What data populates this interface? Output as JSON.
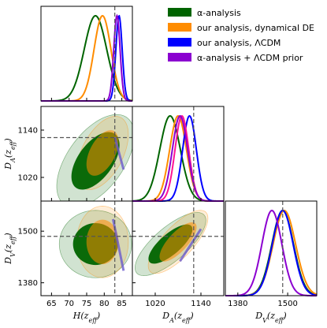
{
  "chart_data": {
    "type": "corner",
    "parameters": [
      {
        "key": "H",
        "label": "H(z_eff)",
        "ticks": [
          65,
          70,
          75,
          80,
          85
        ],
        "range": [
          62,
          88
        ],
        "truth": 83
      },
      {
        "key": "DA",
        "label": "D_A(z_eff)",
        "ticks": [
          1020,
          1140
        ],
        "range": [
          960,
          1200
        ],
        "truth": 1121
      },
      {
        "key": "DV",
        "label": "D_V(z_eff)",
        "ticks": [
          1380,
          1500
        ],
        "range": [
          1350,
          1570
        ],
        "truth": 1488
      }
    ],
    "legend": [
      {
        "name": "α-analysis",
        "color": "#006400"
      },
      {
        "name": "our analysis, dynamical DE",
        "color": "#FF8C00"
      },
      {
        "name": "our analysis, ΛCDM",
        "color": "#0000FF"
      },
      {
        "name": "α-analysis +  ΛCDM prior",
        "color": "#8B00D0"
      }
    ],
    "legend_placement": "top-right",
    "marginals": {
      "H": [
        {
          "series": "α-analysis",
          "mean": 77.5,
          "sigma": 3.2,
          "color": "#006400"
        },
        {
          "series": "our analysis, dynamical DE",
          "mean": 79.5,
          "sigma": 2.4,
          "color": "#FF8C00"
        },
        {
          "series": "our analysis, ΛCDM",
          "mean": 84.2,
          "sigma": 0.9,
          "color": "#0000FF"
        },
        {
          "series": "α-analysis +  ΛCDM prior",
          "mean": 83.6,
          "sigma": 0.9,
          "color": "#8B00D0"
        }
      ],
      "DA": [
        {
          "series": "α-analysis",
          "mean": 1059,
          "sigma": 27,
          "color": "#006400"
        },
        {
          "series": "our analysis, dynamical DE",
          "mean": 1080,
          "sigma": 22,
          "color": "#FF8C00"
        },
        {
          "series": "our analysis, ΛCDM",
          "mean": 1110,
          "sigma": 18,
          "color": "#0000FF"
        },
        {
          "series": "α-analysis +  ΛCDM prior",
          "mean": 1090,
          "sigma": 18,
          "color": "#FF1493"
        },
        {
          "series": "α-analysis +  ΛCDM prior (purple)",
          "mean": 1085,
          "sigma": 20,
          "color": "#8B00D0"
        }
      ],
      "DV": [
        {
          "series": "α-analysis",
          "mean": 1488,
          "sigma": 26,
          "color": "#006400"
        },
        {
          "series": "our analysis, dynamical DE",
          "mean": 1492,
          "sigma": 27,
          "color": "#FF8C00"
        },
        {
          "series": "our analysis, ΛCDM",
          "mean": 1488,
          "sigma": 25,
          "color": "#0000FF"
        },
        {
          "series": "α-analysis +  ΛCDM prior",
          "mean": 1462,
          "sigma": 24,
          "color": "#8B00D0"
        }
      ]
    },
    "contours": {
      "DA_vs_H": [
        {
          "series": "α-analysis",
          "color": "#006400",
          "center": [
            77.5,
            1062
          ],
          "sx": 4.5,
          "sy": 48,
          "rho": 0.55
        },
        {
          "series": "our analysis, dynamical DE",
          "color": "#FF8C00",
          "center": [
            79.5,
            1082
          ],
          "sx": 3.0,
          "sy": 38,
          "rho": 0.5
        }
      ],
      "DV_vs_H": [
        {
          "series": "α-analysis",
          "color": "#006400",
          "center": [
            77.5,
            1470
          ],
          "sx": 4.2,
          "sy": 32,
          "rho": 0.0
        },
        {
          "series": "our analysis, dynamical DE",
          "color": "#FF8C00",
          "center": [
            79.5,
            1475
          ],
          "sx": 3.0,
          "sy": 34,
          "rho": 0.0
        }
      ],
      "DV_vs_DA": [
        {
          "series": "α-analysis",
          "color": "#006400",
          "center": [
            1060,
            1470
          ],
          "sx": 38,
          "sy": 30,
          "rho": 0.75
        },
        {
          "series": "our analysis, dynamical DE",
          "color": "#FF8C00",
          "center": [
            1080,
            1475
          ],
          "sx": 32,
          "sy": 30,
          "rho": 0.75
        }
      ],
      "lines": [
        {
          "panel": "DA_vs_H",
          "color": "#6A5ACD",
          "from": [
            83.0,
            1122
          ],
          "to": [
            85.5,
            1040
          ]
        },
        {
          "panel": "DV_vs_H",
          "color": "#6A5ACD",
          "from": [
            82.5,
            1528
          ],
          "to": [
            85.5,
            1408
          ]
        },
        {
          "panel": "DV_vs_DA",
          "color": "#6A5ACD",
          "from": [
            1085,
            1430
          ],
          "to": [
            1140,
            1505
          ]
        }
      ]
    }
  }
}
